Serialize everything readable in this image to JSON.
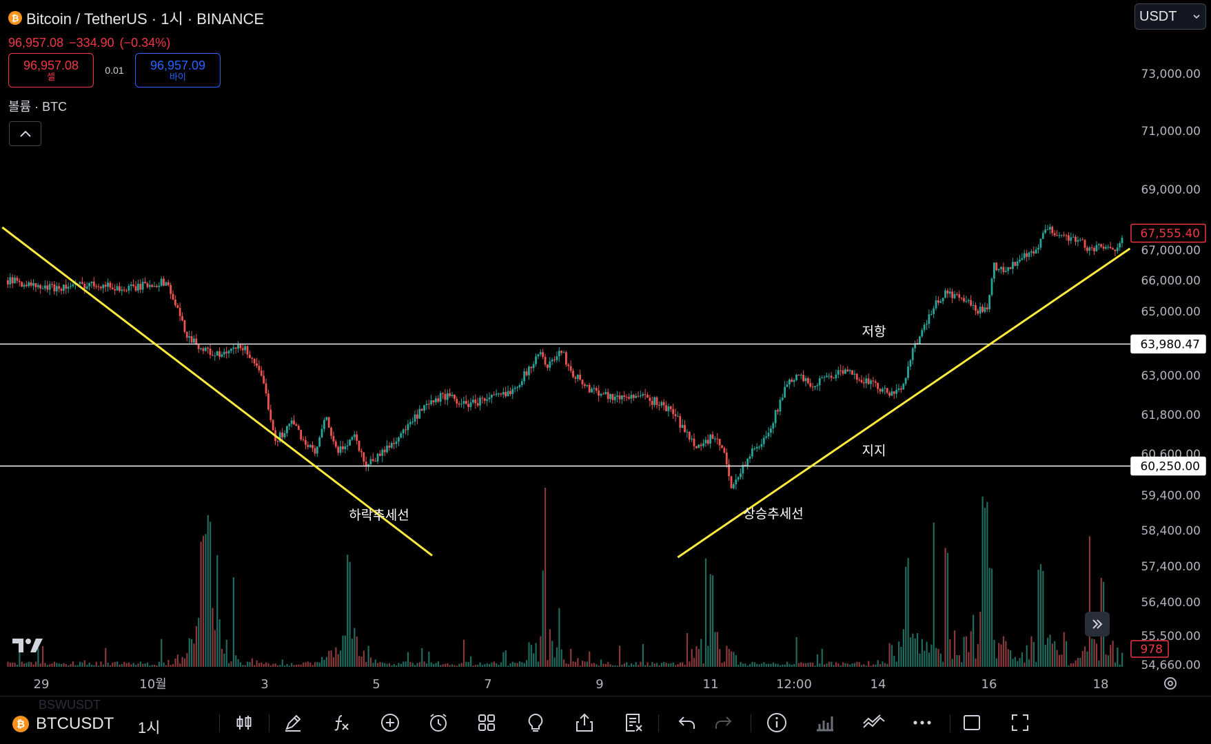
{
  "header": {
    "title": "Bitcoin / TetherUS · 1시 · BINANCE",
    "last_price": "96,957.08",
    "change": "−334.90",
    "change_pct": "(−0.34%)",
    "sell_price": "96,957.08",
    "sell_label": "셀",
    "spread": "0.01",
    "buy_price": "96,957.09",
    "buy_label": "바이",
    "volume_label": "볼륨 · BTC",
    "currency": "USDT"
  },
  "toolbar": {
    "symbol": "BTCUSDT",
    "interval": "1시",
    "ghost_text": "BSWUSDT"
  },
  "colors": {
    "up": "#26a69a",
    "down": "#ef5350",
    "trendline": "#ffeb3b",
    "hline": "#ffffff",
    "price_tag": "#f23645"
  },
  "chart_data": {
    "type": "candlestick",
    "title": "",
    "y_ticks": [
      73000,
      71000,
      69000,
      67000,
      66000,
      65000,
      63000,
      61800,
      60600,
      59400,
      58400,
      57400,
      56400,
      55500,
      54660
    ],
    "y_tick_labels": [
      "73,000.00",
      "71,000.00",
      "69,000.00",
      "67,000.00",
      "66,000.00",
      "65,000.00",
      "63,000.00",
      "61,800.00",
      "60,600.00",
      "59,400.00",
      "58,400.00",
      "57,400.00",
      "56,400.00",
      "55,500.00",
      "54,660.00"
    ],
    "x_ticks": [
      {
        "label": "29",
        "day": 29
      },
      {
        "label": "10월",
        "day": 31
      },
      {
        "label": "3",
        "day": 33
      },
      {
        "label": "5",
        "day": 35
      },
      {
        "label": "7",
        "day": 37
      },
      {
        "label": "9",
        "day": 39
      },
      {
        "label": "11",
        "day": 41
      },
      {
        "label": "12:00",
        "day": 41.5
      },
      {
        "label": "14",
        "day": 44
      },
      {
        "label": "16",
        "day": 46
      },
      {
        "label": "18",
        "day": 48
      }
    ],
    "path_keys": [
      {
        "d": 28.4,
        "p": 66000
      },
      {
        "d": 28.6,
        "p": 65950
      },
      {
        "d": 29.0,
        "p": 65750
      },
      {
        "d": 29.5,
        "p": 65800
      },
      {
        "d": 30.0,
        "p": 65900
      },
      {
        "d": 30.5,
        "p": 65700
      },
      {
        "d": 31.0,
        "p": 65900
      },
      {
        "d": 31.25,
        "p": 65950
      },
      {
        "d": 31.4,
        "p": 65200
      },
      {
        "d": 31.6,
        "p": 64300
      },
      {
        "d": 31.9,
        "p": 63800
      },
      {
        "d": 32.2,
        "p": 63600
      },
      {
        "d": 32.6,
        "p": 63900
      },
      {
        "d": 32.8,
        "p": 63500
      },
      {
        "d": 33.0,
        "p": 62600
      },
      {
        "d": 33.2,
        "p": 61000
      },
      {
        "d": 33.5,
        "p": 61600
      },
      {
        "d": 33.7,
        "p": 61000
      },
      {
        "d": 33.9,
        "p": 60600
      },
      {
        "d": 34.1,
        "p": 61700
      },
      {
        "d": 34.3,
        "p": 60600
      },
      {
        "d": 34.6,
        "p": 61200
      },
      {
        "d": 34.8,
        "p": 60300
      },
      {
        "d": 35.0,
        "p": 60500
      },
      {
        "d": 35.2,
        "p": 60800
      },
      {
        "d": 35.5,
        "p": 61300
      },
      {
        "d": 35.8,
        "p": 61900
      },
      {
        "d": 36.2,
        "p": 62400
      },
      {
        "d": 36.6,
        "p": 62100
      },
      {
        "d": 37.0,
        "p": 62300
      },
      {
        "d": 37.3,
        "p": 62400
      },
      {
        "d": 37.5,
        "p": 62700
      },
      {
        "d": 37.7,
        "p": 63100
      },
      {
        "d": 37.9,
        "p": 63700
      },
      {
        "d": 38.1,
        "p": 63300
      },
      {
        "d": 38.3,
        "p": 63800
      },
      {
        "d": 38.5,
        "p": 63100
      },
      {
        "d": 38.8,
        "p": 62600
      },
      {
        "d": 39.0,
        "p": 62500
      },
      {
        "d": 39.3,
        "p": 62300
      },
      {
        "d": 39.6,
        "p": 62400
      },
      {
        "d": 40.0,
        "p": 62200
      },
      {
        "d": 40.3,
        "p": 61900
      },
      {
        "d": 40.6,
        "p": 61100
      },
      {
        "d": 40.8,
        "p": 60800
      },
      {
        "d": 41.0,
        "p": 61100
      },
      {
        "d": 41.2,
        "p": 60800
      },
      {
        "d": 41.35,
        "p": 59700
      },
      {
        "d": 41.5,
        "p": 60000
      },
      {
        "d": 41.7,
        "p": 60600
      },
      {
        "d": 41.9,
        "p": 60900
      },
      {
        "d": 42.1,
        "p": 61600
      },
      {
        "d": 42.3,
        "p": 62500
      },
      {
        "d": 42.5,
        "p": 63000
      },
      {
        "d": 42.8,
        "p": 62700
      },
      {
        "d": 43.0,
        "p": 62900
      },
      {
        "d": 43.3,
        "p": 63100
      },
      {
        "d": 43.6,
        "p": 63000
      },
      {
        "d": 43.9,
        "p": 62700
      },
      {
        "d": 44.1,
        "p": 62500
      },
      {
        "d": 44.3,
        "p": 62400
      },
      {
        "d": 44.45,
        "p": 62800
      },
      {
        "d": 44.6,
        "p": 63800
      },
      {
        "d": 44.8,
        "p": 64400
      },
      {
        "d": 45.0,
        "p": 65200
      },
      {
        "d": 45.2,
        "p": 65600
      },
      {
        "d": 45.5,
        "p": 65400
      },
      {
        "d": 45.8,
        "p": 65000
      },
      {
        "d": 45.95,
        "p": 65200
      },
      {
        "d": 46.05,
        "p": 66500
      },
      {
        "d": 46.3,
        "p": 66300
      },
      {
        "d": 46.5,
        "p": 66700
      },
      {
        "d": 46.8,
        "p": 66900
      },
      {
        "d": 47.0,
        "p": 67700
      },
      {
        "d": 47.3,
        "p": 67500
      },
      {
        "d": 47.6,
        "p": 67300
      },
      {
        "d": 47.8,
        "p": 67000
      },
      {
        "d": 48.0,
        "p": 67100
      },
      {
        "d": 48.2,
        "p": 66950
      },
      {
        "d": 48.38,
        "p": 67555
      }
    ],
    "vol_range": [
      0,
      3500
    ],
    "volume_shape": {
      "base": 55,
      "spikes": [
        {
          "d": 31.9,
          "v": 2700
        },
        {
          "d": 32.0,
          "v": 3100
        },
        {
          "d": 34.5,
          "v": 2300
        },
        {
          "d": 38.0,
          "v": 2100
        },
        {
          "d": 41.0,
          "v": 1900
        },
        {
          "d": 44.5,
          "v": 2200
        },
        {
          "d": 45.2,
          "v": 2500
        },
        {
          "d": 45.9,
          "v": 3500
        },
        {
          "d": 46.0,
          "v": 2000
        },
        {
          "d": 46.9,
          "v": 2100
        },
        {
          "d": 48.0,
          "v": 1800
        }
      ]
    },
    "volume_last": "978",
    "price_tag": "67,555.40",
    "horizontal_lines": [
      {
        "price": 63980.47,
        "label": "63,980.47",
        "text": "저항"
      },
      {
        "price": 60250.0,
        "label": "60,250.00",
        "text": "지지"
      }
    ],
    "trendlines": [
      {
        "name": "하락추세선",
        "from": {
          "d": 28.3,
          "p": 67750
        },
        "to": {
          "d": 36.0,
          "p": 57700
        }
      },
      {
        "name": "상승추세선",
        "from": {
          "d": 40.4,
          "p": 57650
        },
        "to": {
          "d": 48.5,
          "p": 67050
        }
      }
    ]
  }
}
